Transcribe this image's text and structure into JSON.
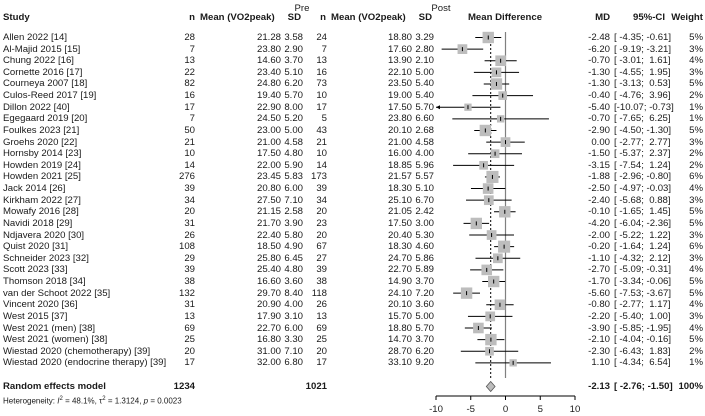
{
  "header": {
    "study": "Study",
    "pre_group": "Pre",
    "post_group": "Post",
    "n": "n",
    "mean": "Mean (VO2peak)",
    "sd": "SD",
    "mean_difference": "Mean Difference",
    "md": "MD",
    "ci": "95%-CI",
    "weight": "Weight"
  },
  "rows": [
    {
      "study": "Allen 2022 [14]",
      "n_pre": "28",
      "mean_pre": "21.28",
      "sd_pre": "3.58",
      "n_post": "24",
      "mean_post": "18.80",
      "sd_post": "3.29",
      "md": "-2.48",
      "ci": "[ -4.35; -0.61]",
      "weight": "5%"
    },
    {
      "study": "Al-Majid 2015 [15]",
      "n_pre": "7",
      "mean_pre": "23.80",
      "sd_pre": "2.90",
      "n_post": "7",
      "mean_post": "17.60",
      "sd_post": "2.80",
      "md": "-6.20",
      "ci": "[ -9.19; -3.21]",
      "weight": "3%"
    },
    {
      "study": "Chung 2022 [16]",
      "n_pre": "13",
      "mean_pre": "14.60",
      "sd_pre": "3.70",
      "n_post": "13",
      "mean_post": "13.90",
      "sd_post": "2.10",
      "md": "-0.70",
      "ci": "[ -3.01;  1.61]",
      "weight": "4%"
    },
    {
      "study": "Cornette 2016 [17]",
      "n_pre": "22",
      "mean_pre": "23.40",
      "sd_pre": "5.10",
      "n_post": "16",
      "mean_post": "22.10",
      "sd_post": "5.00",
      "md": "-1.30",
      "ci": "[ -4.55;  1.95]",
      "weight": "3%"
    },
    {
      "study": "Courneya 2007 [18]",
      "n_pre": "82",
      "mean_pre": "24.80",
      "sd_pre": "6.20",
      "n_post": "73",
      "mean_post": "23.50",
      "sd_post": "5.40",
      "md": "-1.30",
      "ci": "[ -3.13;  0.53]",
      "weight": "5%"
    },
    {
      "study": "Culos-Reed 2017 [19]",
      "n_pre": "16",
      "mean_pre": "19.40",
      "sd_pre": "5.70",
      "n_post": "10",
      "mean_post": "19.00",
      "sd_post": "5.40",
      "md": "-0.40",
      "ci": "[ -4.76;  3.96]",
      "weight": "2%"
    },
    {
      "study": "Dillon 2022 [40]",
      "n_pre": "17",
      "mean_pre": "22.90",
      "sd_pre": "8.00",
      "n_post": "17",
      "mean_post": "17.50",
      "sd_post": "5.70",
      "md": "-5.40",
      "ci": "[-10.07; -0.73]",
      "weight": "1%"
    },
    {
      "study": "Egegaard 2019 [20]",
      "n_pre": "7",
      "mean_pre": "24.50",
      "sd_pre": "5.20",
      "n_post": "5",
      "mean_post": "23.80",
      "sd_post": "6.60",
      "md": "-0.70",
      "ci": "[ -7.65;  6.25]",
      "weight": "1%"
    },
    {
      "study": "Foulkes 2023 [21]",
      "n_pre": "50",
      "mean_pre": "23.00",
      "sd_pre": "5.00",
      "n_post": "43",
      "mean_post": "20.10",
      "sd_post": "2.68",
      "md": "-2.90",
      "ci": "[ -4.50; -1.30]",
      "weight": "5%"
    },
    {
      "study": "Groehs 2020 [22]",
      "n_pre": "21",
      "mean_pre": "21.00",
      "sd_pre": "4.58",
      "n_post": "21",
      "mean_post": "21.00",
      "sd_post": "4.58",
      "md": "0.00",
      "ci": "[ -2.77;  2.77]",
      "weight": "3%"
    },
    {
      "study": "Hornsby 2014 [23]",
      "n_pre": "10",
      "mean_pre": "17.50",
      "sd_pre": "4.80",
      "n_post": "10",
      "mean_post": "16.00",
      "sd_post": "4.00",
      "md": "-1.50",
      "ci": "[ -5.37;  2.37]",
      "weight": "2%"
    },
    {
      "study": "Howden 2019 [24]",
      "n_pre": "14",
      "mean_pre": "22.00",
      "sd_pre": "5.90",
      "n_post": "14",
      "mean_post": "18.85",
      "sd_post": "5.96",
      "md": "-3.15",
      "ci": "[ -7.54;  1.24]",
      "weight": "2%"
    },
    {
      "study": "Howden 2021 [25]",
      "n_pre": "276",
      "mean_pre": "23.45",
      "sd_pre": "5.83",
      "n_post": "173",
      "mean_post": "21.57",
      "sd_post": "5.57",
      "md": "-1.88",
      "ci": "[ -2.96; -0.80]",
      "weight": "6%"
    },
    {
      "study": "Jack 2014 [26]",
      "n_pre": "39",
      "mean_pre": "20.80",
      "sd_pre": "6.00",
      "n_post": "39",
      "mean_post": "18.30",
      "sd_post": "5.10",
      "md": "-2.50",
      "ci": "[ -4.97; -0.03]",
      "weight": "4%"
    },
    {
      "study": "Kirkham 2022 [27]",
      "n_pre": "34",
      "mean_pre": "27.50",
      "sd_pre": "7.10",
      "n_post": "34",
      "mean_post": "25.10",
      "sd_post": "6.70",
      "md": "-2.40",
      "ci": "[ -5.68;  0.88]",
      "weight": "3%"
    },
    {
      "study": "Mowafy 2016 [28]",
      "n_pre": "20",
      "mean_pre": "21.15",
      "sd_pre": "2.58",
      "n_post": "20",
      "mean_post": "21.05",
      "sd_post": "2.42",
      "md": "-0.10",
      "ci": "[ -1.65;  1.45]",
      "weight": "5%"
    },
    {
      "study": "Navidi 2018 [29]",
      "n_pre": "31",
      "mean_pre": "21.70",
      "sd_pre": "3.90",
      "n_post": "23",
      "mean_post": "17.50",
      "sd_post": "3.00",
      "md": "-4.20",
      "ci": "[ -6.04; -2.36]",
      "weight": "5%"
    },
    {
      "study": "Ndjavera 2020 [30]",
      "n_pre": "26",
      "mean_pre": "22.40",
      "sd_pre": "5.80",
      "n_post": "20",
      "mean_post": "20.40",
      "sd_post": "5.30",
      "md": "-2.00",
      "ci": "[ -5.22;  1.22]",
      "weight": "3%"
    },
    {
      "study": "Quist 2020 [31]",
      "n_pre": "108",
      "mean_pre": "18.50",
      "sd_pre": "4.90",
      "n_post": "67",
      "mean_post": "18.30",
      "sd_post": "4.60",
      "md": "-0.20",
      "ci": "[ -1.64;  1.24]",
      "weight": "6%"
    },
    {
      "study": "Schneider 2023 [32]",
      "n_pre": "29",
      "mean_pre": "25.80",
      "sd_pre": "6.45",
      "n_post": "27",
      "mean_post": "24.70",
      "sd_post": "5.86",
      "md": "-1.10",
      "ci": "[ -4.32;  2.12]",
      "weight": "3%"
    },
    {
      "study": "Scott 2023 [33]",
      "n_pre": "39",
      "mean_pre": "25.40",
      "sd_pre": "4.80",
      "n_post": "39",
      "mean_post": "22.70",
      "sd_post": "5.89",
      "md": "-2.70",
      "ci": "[ -5.09; -0.31]",
      "weight": "4%"
    },
    {
      "study": "Thomson 2018 [34]",
      "n_pre": "38",
      "mean_pre": "16.60",
      "sd_pre": "3.60",
      "n_post": "38",
      "mean_post": "14.90",
      "sd_post": "3.70",
      "md": "-1.70",
      "ci": "[ -3.34; -0.06]",
      "weight": "5%"
    },
    {
      "study": "van der Schoot 2022 [35]",
      "n_pre": "132",
      "mean_pre": "29.70",
      "sd_pre": "8.40",
      "n_post": "118",
      "mean_post": "24.10",
      "sd_post": "7.20",
      "md": "-5.60",
      "ci": "[ -7.53; -3.67]",
      "weight": "5%"
    },
    {
      "study": "Vincent 2020 [36]",
      "n_pre": "31",
      "mean_pre": "20.90",
      "sd_pre": "4.00",
      "n_post": "26",
      "mean_post": "20.10",
      "sd_post": "3.60",
      "md": "-0.80",
      "ci": "[ -2.77;  1.17]",
      "weight": "4%"
    },
    {
      "study": "West 2015 [37]",
      "n_pre": "13",
      "mean_pre": "17.90",
      "sd_pre": "3.10",
      "n_post": "13",
      "mean_post": "15.70",
      "sd_post": "5.00",
      "md": "-2.20",
      "ci": "[ -5.40;  1.00]",
      "weight": "3%"
    },
    {
      "study": "West 2021 (men) [38]",
      "n_pre": "69",
      "mean_pre": "22.70",
      "sd_pre": "6.00",
      "n_post": "69",
      "mean_post": "18.80",
      "sd_post": "5.70",
      "md": "-3.90",
      "ci": "[ -5.85; -1.95]",
      "weight": "4%"
    },
    {
      "study": "West 2021 (women) [38]",
      "n_pre": "25",
      "mean_pre": "16.80",
      "sd_pre": "3.30",
      "n_post": "25",
      "mean_post": "14.70",
      "sd_post": "3.70",
      "md": "-2.10",
      "ci": "[ -4.04; -0.16]",
      "weight": "5%"
    },
    {
      "study": "Wiestad 2020 (chemotherapy) [39]",
      "n_pre": "20",
      "mean_pre": "31.00",
      "sd_pre": "7.10",
      "n_post": "20",
      "mean_post": "28.70",
      "sd_post": "6.20",
      "md": "-2.30",
      "ci": "[ -6.43;  1.83]",
      "weight": "2%"
    },
    {
      "study": "Wiestad 2020 (endocrine therapy) [39]",
      "n_pre": "17",
      "mean_pre": "32.00",
      "sd_pre": "6.80",
      "n_post": "17",
      "mean_post": "33.10",
      "sd_post": "9.20",
      "md": "1.10",
      "ci": "[ -4.34;  6.54]",
      "weight": "1%"
    }
  ],
  "summary": {
    "label": "Random effects model",
    "n_pre": "1234",
    "n_post": "1021",
    "md": "-2.13",
    "ci": "[ -2.76; -1.50]",
    "weight": "100%"
  },
  "heterogeneity": {
    "prefix": "Heterogeneity: ",
    "i2_sym": "I",
    "i2_val": " = 48.1%, ",
    "tau_sym": "τ",
    "tau_val": " = 1.3124, ",
    "p_sym": "p",
    "p_val": " = 0.0023"
  },
  "axis": {
    "ticks": [
      "-10",
      "-5",
      "0",
      "5",
      "10"
    ]
  },
  "colors": {
    "square": "#bdbdbd",
    "line": "#000000",
    "zero_line": "#808080",
    "diamond": "#bdbdbd"
  },
  "chart_data": {
    "type": "forest",
    "title": "",
    "xlabel": "Mean Difference",
    "xlim": [
      -10,
      10
    ],
    "xticks": [
      -10,
      -5,
      0,
      5,
      10
    ],
    "reference_line": 0,
    "pooled_line": -2.13,
    "categories": [
      "Allen 2022 [14]",
      "Al-Majid 2015 [15]",
      "Chung 2022 [16]",
      "Cornette 2016 [17]",
      "Courneya 2007 [18]",
      "Culos-Reed 2017 [19]",
      "Dillon 2022 [40]",
      "Egegaard 2019 [20]",
      "Foulkes 2023 [21]",
      "Groehs 2020 [22]",
      "Hornsby 2014 [23]",
      "Howden 2019 [24]",
      "Howden 2021 [25]",
      "Jack 2014 [26]",
      "Kirkham 2022 [27]",
      "Mowafy 2016 [28]",
      "Navidi 2018 [29]",
      "Ndjavera 2020 [30]",
      "Quist 2020 [31]",
      "Schneider 2023 [32]",
      "Scott 2023 [33]",
      "Thomson 2018 [34]",
      "van der Schoot 2022 [35]",
      "Vincent 2020 [36]",
      "West 2015 [37]",
      "West 2021 (men) [38]",
      "West 2021 (women) [38]",
      "Wiestad 2020 (chemotherapy) [39]",
      "Wiestad 2020 (endocrine therapy) [39]"
    ],
    "md": [
      -2.48,
      -6.2,
      -0.7,
      -1.3,
      -1.3,
      -0.4,
      -5.4,
      -0.7,
      -2.9,
      0.0,
      -1.5,
      -3.15,
      -1.88,
      -2.5,
      -2.4,
      -0.1,
      -4.2,
      -2.0,
      -0.2,
      -1.1,
      -2.7,
      -1.7,
      -5.6,
      -0.8,
      -2.2,
      -3.9,
      -2.1,
      -2.3,
      1.1
    ],
    "ci_low": [
      -4.35,
      -9.19,
      -3.01,
      -4.55,
      -3.13,
      -4.76,
      -10.07,
      -7.65,
      -4.5,
      -2.77,
      -5.37,
      -7.54,
      -2.96,
      -4.97,
      -5.68,
      -1.65,
      -6.04,
      -5.22,
      -1.64,
      -4.32,
      -5.09,
      -3.34,
      -7.53,
      -2.77,
      -5.4,
      -5.85,
      -4.04,
      -6.43,
      -4.34
    ],
    "ci_high": [
      -0.61,
      -3.21,
      1.61,
      1.95,
      0.53,
      3.96,
      -0.73,
      6.25,
      -1.3,
      2.77,
      2.37,
      1.24,
      -0.8,
      -0.03,
      0.88,
      1.45,
      -2.36,
      1.22,
      1.24,
      2.12,
      -0.31,
      -0.06,
      -3.67,
      1.17,
      1.0,
      -1.95,
      -0.16,
      1.83,
      6.54
    ],
    "weight": [
      5,
      3,
      4,
      3,
      5,
      2,
      1,
      1,
      5,
      3,
      2,
      2,
      6,
      4,
      3,
      5,
      5,
      3,
      6,
      3,
      4,
      5,
      5,
      4,
      3,
      4,
      5,
      2,
      1
    ],
    "pooled": {
      "label": "Random effects model",
      "md": -2.13,
      "ci_low": -2.76,
      "ci_high": -1.5,
      "weight": 100
    },
    "heterogeneity": {
      "I2": "48.1%",
      "tau2": 1.3124,
      "p": 0.0023
    }
  }
}
